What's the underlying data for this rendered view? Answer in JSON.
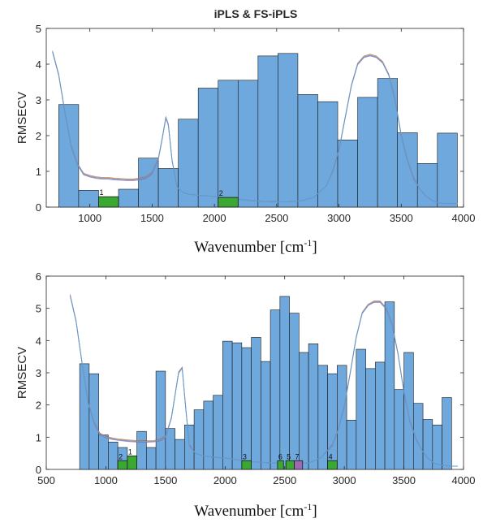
{
  "chart_data": [
    {
      "type": "bar",
      "title": "iPLS & FS-iPLS",
      "xlabel": "Wavenumber [cm",
      "xlabel_sup": "-1",
      "xlabel_end": "]",
      "ylabel": "RMSECV",
      "xlim": [
        650,
        4000
      ],
      "ylim": [
        0,
        5
      ],
      "xticks": [
        1000,
        1500,
        2000,
        2500,
        3000,
        3500,
        4000
      ],
      "yticks": [
        0,
        1,
        2,
        3,
        4,
        5
      ],
      "bar_color": "#6fa8dc",
      "bars": [
        {
          "x0": 750,
          "x1": 910,
          "value": 2.87
        },
        {
          "x0": 910,
          "x1": 1070,
          "value": 0.47
        },
        {
          "x0": 1070,
          "x1": 1230,
          "value": 0.26
        },
        {
          "x0": 1230,
          "x1": 1390,
          "value": 0.5
        },
        {
          "x0": 1390,
          "x1": 1550,
          "value": 1.37
        },
        {
          "x0": 1550,
          "x1": 1710,
          "value": 1.08
        },
        {
          "x0": 1710,
          "x1": 1870,
          "value": 2.46
        },
        {
          "x0": 1870,
          "x1": 2030,
          "value": 3.33
        },
        {
          "x0": 2030,
          "x1": 2190,
          "value": 3.55
        },
        {
          "x0": 2190,
          "x1": 2350,
          "value": 3.55
        },
        {
          "x0": 2350,
          "x1": 2510,
          "value": 4.23
        },
        {
          "x0": 2510,
          "x1": 2670,
          "value": 4.3
        },
        {
          "x0": 2670,
          "x1": 2830,
          "value": 3.15
        },
        {
          "x0": 2830,
          "x1": 2990,
          "value": 2.95
        },
        {
          "x0": 2990,
          "x1": 3150,
          "value": 1.88
        },
        {
          "x0": 3150,
          "x1": 3310,
          "value": 3.07
        },
        {
          "x0": 3310,
          "x1": 3470,
          "value": 3.6
        },
        {
          "x0": 3470,
          "x1": 3630,
          "value": 2.08
        },
        {
          "x0": 3630,
          "x1": 3790,
          "value": 1.22
        },
        {
          "x0": 3790,
          "x1": 3950,
          "value": 2.07
        }
      ],
      "selected_intervals": [
        {
          "label": "1",
          "x0": 1070,
          "x1": 1230,
          "value": 0.29,
          "color": "#3aa832"
        },
        {
          "label": "2",
          "x0": 2030,
          "x1": 2190,
          "value": 0.27,
          "color": "#3aa832"
        }
      ],
      "spectrum": {
        "color": "#5b9bd5",
        "x": [
          700,
          750,
          800,
          850,
          900,
          950,
          1000,
          1050,
          1100,
          1150,
          1200,
          1250,
          1300,
          1350,
          1400,
          1450,
          1500,
          1550,
          1580,
          1610,
          1630,
          1660,
          1700,
          1750,
          1800,
          1850,
          1900,
          2000,
          2100,
          2200,
          2300,
          2400,
          2500,
          2600,
          2700,
          2800,
          2900,
          2950,
          3000,
          3050,
          3100,
          3150,
          3200,
          3250,
          3300,
          3350,
          3400,
          3450,
          3500,
          3550,
          3600,
          3650,
          3700,
          3750,
          3800,
          3850,
          3900,
          3950
        ],
        "y": [
          4.35,
          3.7,
          2.65,
          1.7,
          1.2,
          0.92,
          0.86,
          0.82,
          0.8,
          0.8,
          0.78,
          0.77,
          0.76,
          0.76,
          0.78,
          0.82,
          0.95,
          1.35,
          1.9,
          2.5,
          2.3,
          1.3,
          0.55,
          0.4,
          0.36,
          0.34,
          0.32,
          0.3,
          0.25,
          0.22,
          0.18,
          0.16,
          0.15,
          0.15,
          0.18,
          0.28,
          0.6,
          1.0,
          1.6,
          2.5,
          3.4,
          4.0,
          4.2,
          4.25,
          4.2,
          4.05,
          3.7,
          3.0,
          2.0,
          1.3,
          0.8,
          0.5,
          0.3,
          0.18,
          0.12,
          0.1,
          0.1,
          0.1
        ]
      }
    },
    {
      "type": "bar",
      "title": "",
      "xlabel": "Wavenumber [cm",
      "xlabel_sup": "-1",
      "xlabel_end": "]",
      "ylabel": "RMSECV",
      "xlim": [
        500,
        4000
      ],
      "ylim": [
        0,
        6
      ],
      "xticks": [
        500,
        1000,
        1500,
        2000,
        2500,
        3000,
        3500,
        4000
      ],
      "yticks": [
        0,
        1,
        2,
        3,
        4,
        5,
        6
      ],
      "bar_color": "#6fa8dc",
      "bars": [
        {
          "x0": 780,
          "x1": 860,
          "value": 3.28
        },
        {
          "x0": 860,
          "x1": 940,
          "value": 2.97
        },
        {
          "x0": 940,
          "x1": 1020,
          "value": 1.07
        },
        {
          "x0": 1020,
          "x1": 1100,
          "value": 0.85
        },
        {
          "x0": 1100,
          "x1": 1180,
          "value": 0.68
        },
        {
          "x0": 1180,
          "x1": 1260,
          "value": 0.38
        },
        {
          "x0": 1260,
          "x1": 1340,
          "value": 1.18
        },
        {
          "x0": 1340,
          "x1": 1420,
          "value": 0.68
        },
        {
          "x0": 1420,
          "x1": 1500,
          "value": 3.05
        },
        {
          "x0": 1500,
          "x1": 1580,
          "value": 1.27
        },
        {
          "x0": 1580,
          "x1": 1660,
          "value": 0.93
        },
        {
          "x0": 1660,
          "x1": 1740,
          "value": 1.38
        },
        {
          "x0": 1740,
          "x1": 1820,
          "value": 1.85
        },
        {
          "x0": 1820,
          "x1": 1900,
          "value": 2.12
        },
        {
          "x0": 1900,
          "x1": 1980,
          "value": 2.3
        },
        {
          "x0": 1980,
          "x1": 2060,
          "value": 3.98
        },
        {
          "x0": 2060,
          "x1": 2140,
          "value": 3.93
        },
        {
          "x0": 2140,
          "x1": 2220,
          "value": 3.78
        },
        {
          "x0": 2220,
          "x1": 2300,
          "value": 4.1
        },
        {
          "x0": 2300,
          "x1": 2380,
          "value": 3.35
        },
        {
          "x0": 2380,
          "x1": 2460,
          "value": 4.95
        },
        {
          "x0": 2460,
          "x1": 2540,
          "value": 5.37
        },
        {
          "x0": 2540,
          "x1": 2620,
          "value": 4.85
        },
        {
          "x0": 2620,
          "x1": 2700,
          "value": 3.63
        },
        {
          "x0": 2700,
          "x1": 2780,
          "value": 3.9
        },
        {
          "x0": 2780,
          "x1": 2860,
          "value": 3.23
        },
        {
          "x0": 2860,
          "x1": 2940,
          "value": 2.97
        },
        {
          "x0": 2940,
          "x1": 3020,
          "value": 3.23
        },
        {
          "x0": 3020,
          "x1": 3100,
          "value": 1.53
        },
        {
          "x0": 3100,
          "x1": 3180,
          "value": 3.73
        },
        {
          "x0": 3180,
          "x1": 3260,
          "value": 3.13
        },
        {
          "x0": 3260,
          "x1": 3340,
          "value": 3.33
        },
        {
          "x0": 3340,
          "x1": 3420,
          "value": 5.2
        },
        {
          "x0": 3420,
          "x1": 3500,
          "value": 2.48
        },
        {
          "x0": 3500,
          "x1": 3580,
          "value": 3.63
        },
        {
          "x0": 3580,
          "x1": 3660,
          "value": 2.05
        },
        {
          "x0": 3660,
          "x1": 3740,
          "value": 1.55
        },
        {
          "x0": 3740,
          "x1": 3820,
          "value": 1.38
        },
        {
          "x0": 3820,
          "x1": 3900,
          "value": 2.23
        }
      ],
      "selected_intervals": [
        {
          "label": "2",
          "x0": 1100,
          "x1": 1180,
          "value": 0.27,
          "color": "#3aa832"
        },
        {
          "label": "1",
          "x0": 1180,
          "x1": 1260,
          "value": 0.42,
          "color": "#3aa832"
        },
        {
          "label": "3",
          "x0": 2140,
          "x1": 2220,
          "value": 0.27,
          "color": "#3aa832"
        },
        {
          "label": "6",
          "x0": 2440,
          "x1": 2490,
          "value": 0.27,
          "color": "#3aa832"
        },
        {
          "label": "5",
          "x0": 2510,
          "x1": 2580,
          "value": 0.27,
          "color": "#3aa832"
        },
        {
          "label": "7",
          "x0": 2580,
          "x1": 2650,
          "value": 0.27,
          "color": "#9b6ab0"
        },
        {
          "label": "4",
          "x0": 2860,
          "x1": 2940,
          "value": 0.27,
          "color": "#3aa832"
        }
      ],
      "spectrum": {
        "color": "#5b9bd5",
        "x": [
          700,
          750,
          800,
          850,
          900,
          950,
          1000,
          1050,
          1100,
          1150,
          1200,
          1250,
          1300,
          1350,
          1400,
          1450,
          1500,
          1550,
          1580,
          1610,
          1640,
          1670,
          1700,
          1750,
          1800,
          1850,
          1900,
          2000,
          2100,
          2200,
          2300,
          2400,
          2500,
          2600,
          2700,
          2800,
          2900,
          2950,
          3000,
          3050,
          3100,
          3150,
          3200,
          3250,
          3300,
          3350,
          3400,
          3450,
          3500,
          3550,
          3600,
          3650,
          3700,
          3750,
          3800,
          3850,
          3900,
          3950
        ],
        "y": [
          5.4,
          4.6,
          3.3,
          2.1,
          1.45,
          1.1,
          1.0,
          0.95,
          0.92,
          0.9,
          0.88,
          0.87,
          0.86,
          0.86,
          0.87,
          0.9,
          1.0,
          1.6,
          2.3,
          3.0,
          3.15,
          1.9,
          0.75,
          0.5,
          0.44,
          0.4,
          0.38,
          0.35,
          0.3,
          0.25,
          0.22,
          0.2,
          0.18,
          0.18,
          0.2,
          0.35,
          0.75,
          1.25,
          1.95,
          3.0,
          4.1,
          4.85,
          5.1,
          5.2,
          5.2,
          5.0,
          4.5,
          3.6,
          2.4,
          1.5,
          0.95,
          0.6,
          0.35,
          0.2,
          0.14,
          0.12,
          0.1,
          0.1
        ]
      }
    }
  ]
}
